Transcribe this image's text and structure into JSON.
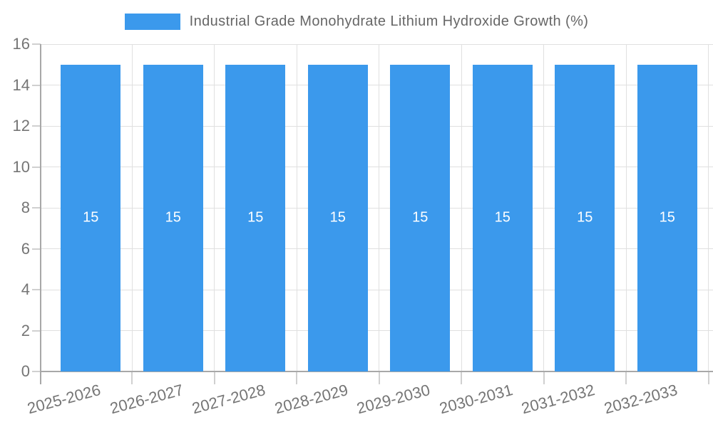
{
  "legend": {
    "label": "Industrial Grade Monohydrate Lithium Hydroxide Growth (%)",
    "position": "top"
  },
  "chart_data": {
    "type": "bar",
    "title": "Industrial Grade Monohydrate Lithium Hydroxide Growth (%)",
    "categories": [
      "2025-2026",
      "2026-2027",
      "2027-2028",
      "2028-2029",
      "2029-2030",
      "2030-2031",
      "2031-2032",
      "2032-2033"
    ],
    "values": [
      15,
      15,
      15,
      15,
      15,
      15,
      15,
      15
    ],
    "bar_value_labels": [
      "15",
      "15",
      "15",
      "15",
      "15",
      "15",
      "15",
      "15"
    ],
    "xlabel": "",
    "ylabel": "",
    "ylim": [
      0,
      16
    ],
    "yticks": [
      0,
      2,
      4,
      6,
      8,
      10,
      12,
      14,
      16
    ],
    "grid": true,
    "legend_position": "top",
    "x_label_rotation_deg": -15,
    "colors": {
      "bar": "#3B99EC",
      "grid": "#E0E0E0",
      "tick": "#D0D0D0",
      "axis": "#A8A8A8",
      "label": "#757575",
      "title": "#666666",
      "value": "#FFFFFF",
      "background": "#FFFFFF"
    }
  }
}
